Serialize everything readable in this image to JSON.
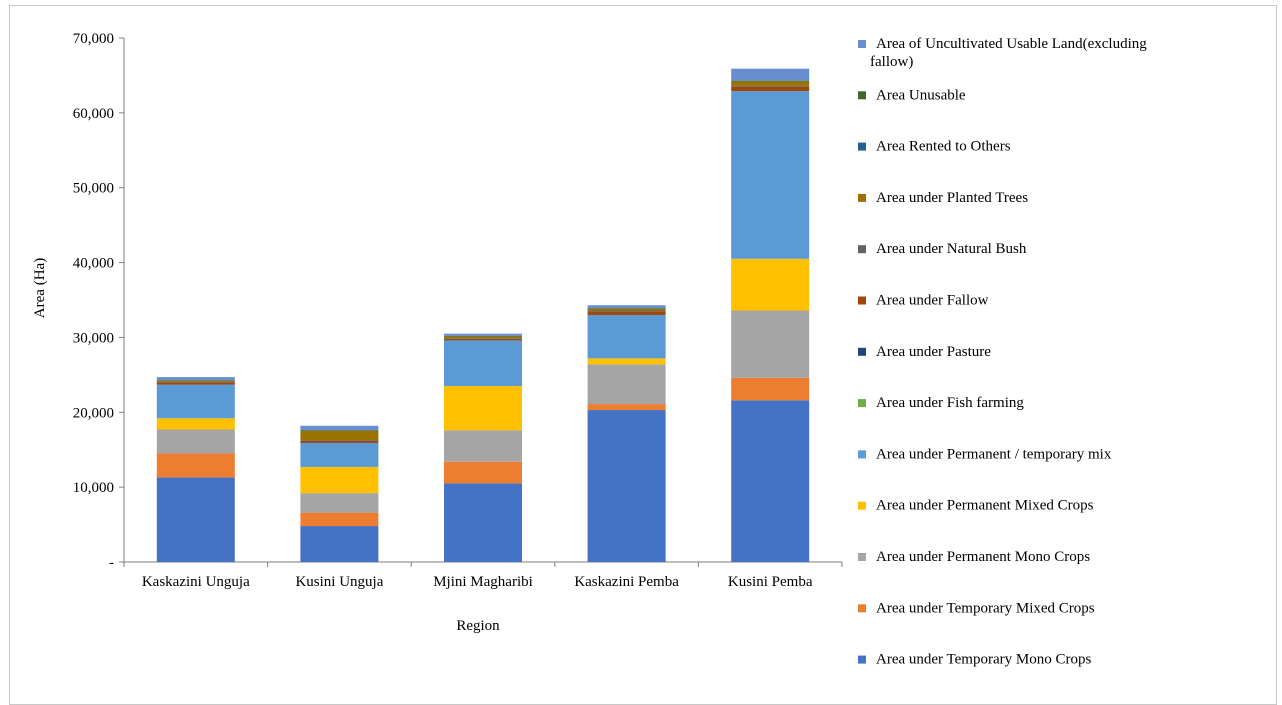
{
  "chart_data": {
    "type": "bar",
    "stacked": true,
    "title": "",
    "xlabel": "Region",
    "ylabel": "Area (Ha)",
    "ylim": [
      0,
      70000
    ],
    "ytick_step": 10000,
    "ytick_labels": [
      "-",
      "10,000",
      "20,000",
      "30,000",
      "40,000",
      "50,000",
      "60,000",
      "70,000"
    ],
    "grid": false,
    "legend_position": "right",
    "categories": [
      "Kaskazini Unguja",
      "Kusini Unguja",
      "Mjini Magharibi",
      "Kaskazini Pemba",
      "Kusini  Pemba"
    ],
    "series": [
      {
        "name": "Area under Temporary Mono Crops",
        "color": "#4472C4",
        "values": [
          11300,
          4800,
          10500,
          20300,
          21600
        ]
      },
      {
        "name": "Area under Temporary Mixed Crops",
        "color": "#ED7D31",
        "values": [
          3200,
          1800,
          2900,
          800,
          3000
        ]
      },
      {
        "name": "Area under Permanent Mono Crops",
        "color": "#A5A5A5",
        "values": [
          3200,
          2600,
          4200,
          5300,
          9000
        ]
      },
      {
        "name": "Area under Permanent Mixed Crops",
        "color": "#FFC000",
        "values": [
          1500,
          3500,
          5900,
          800,
          6900
        ]
      },
      {
        "name": "Area under Permanent / temporary mix",
        "color": "#5B9BD5",
        "values": [
          4500,
          3200,
          6100,
          5800,
          22400
        ]
      },
      {
        "name": "Area under Fish farming",
        "color": "#70AD47",
        "values": [
          0,
          0,
          0,
          0,
          0
        ]
      },
      {
        "name": "Area under Pasture",
        "color": "#264478",
        "values": [
          0,
          0,
          0,
          0,
          0
        ]
      },
      {
        "name": "Area under Fallow",
        "color": "#9E480E",
        "values": [
          300,
          300,
          200,
          500,
          600
        ]
      },
      {
        "name": "Area under Natural Bush",
        "color": "#636363",
        "values": [
          100,
          100,
          100,
          100,
          100
        ]
      },
      {
        "name": "Area under Planted Trees",
        "color": "#997300",
        "values": [
          100,
          1200,
          200,
          200,
          600
        ]
      },
      {
        "name": "Area Rented to Others",
        "color": "#255E91",
        "values": [
          0,
          0,
          0,
          0,
          0
        ]
      },
      {
        "name": "Area Unusable",
        "color": "#43682B",
        "values": [
          100,
          100,
          100,
          100,
          100
        ]
      },
      {
        "name": "Area of Uncultivated Usable Land(excluding fallow)",
        "color": "#698ED0",
        "values": [
          400,
          600,
          300,
          400,
          1600
        ]
      }
    ]
  }
}
